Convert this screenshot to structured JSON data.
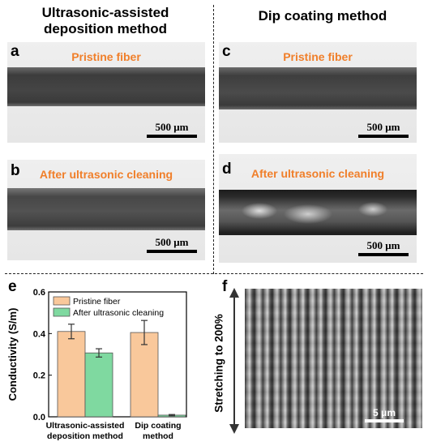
{
  "columns": {
    "left_title_line1": "Ultrasonic-assisted",
    "left_title_line2": "deposition method",
    "right_title": "Dip coating method"
  },
  "panels": {
    "a": {
      "letter": "a",
      "caption": "Pristine fiber",
      "scale": "500 μm"
    },
    "b": {
      "letter": "b",
      "caption": "After ultrasonic cleaning",
      "scale": "500 μm"
    },
    "c": {
      "letter": "c",
      "caption": "Pristine fiber",
      "scale": "500 μm"
    },
    "d": {
      "letter": "d",
      "caption": "After ultrasonic cleaning",
      "scale": "500 μm"
    },
    "e": {
      "letter": "e"
    },
    "f": {
      "letter": "f",
      "side_label": "Stretching to 200%",
      "scale": "5 μm"
    }
  },
  "chart_data": {
    "type": "bar",
    "categories": [
      "Ultrasonic-assisted deposition method",
      "Dip coating method"
    ],
    "category_lines": [
      [
        "Ultrasonic-assisted",
        "deposition method"
      ],
      [
        "Dip coating",
        "method"
      ]
    ],
    "series": [
      {
        "name": "Pristine fiber",
        "values": [
          0.41,
          0.405
        ],
        "errors": [
          0.035,
          0.058
        ],
        "color": "#f9c89b"
      },
      {
        "name": "After ultrasonic cleaning",
        "values": [
          0.307,
          0.008
        ],
        "errors": [
          0.02,
          0.003
        ],
        "color": "#7fd9a0"
      }
    ],
    "ylabel": "Conductivity (S/m)",
    "xlabel": "",
    "ylim": [
      0,
      0.6
    ],
    "yticks": [
      "0.0",
      "0.2",
      "0.4",
      "0.6"
    ],
    "ytick_values": [
      0.0,
      0.2,
      0.4,
      0.6
    ],
    "legend_position": "top-left",
    "grid": false
  }
}
